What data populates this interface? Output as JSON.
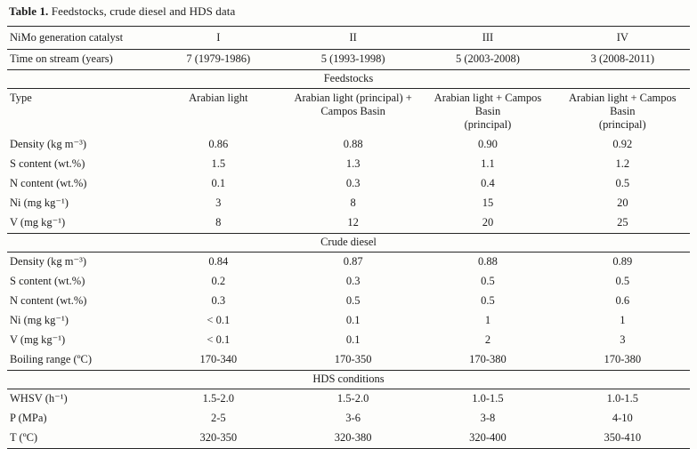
{
  "title": {
    "label": "Table 1.",
    "caption": " Feedstocks, crude diesel and HDS data"
  },
  "table": {
    "corner_label": "NiMo generation catalyst",
    "columns": [
      "I",
      "II",
      "III",
      "IV"
    ],
    "pre_rows": [
      {
        "label": "Time on stream (years)",
        "values": [
          "7 (1979-1986)",
          "5 (1993-1998)",
          "5 (2003-2008)",
          "3 (2008-2011)"
        ]
      }
    ],
    "sections": [
      {
        "name": "Feedstocks",
        "rows": [
          {
            "label": "Type",
            "values": [
              "Arabian light",
              "Arabian light (principal) +\nCampos Basin",
              "Arabian light + Campos Basin\n(principal)",
              "Arabian light + Campos Basin\n(principal)"
            ]
          },
          {
            "label": "Density (kg m⁻³)",
            "values": [
              "0.86",
              "0.88",
              "0.90",
              "0.92"
            ]
          },
          {
            "label": "S content (wt.%)",
            "values": [
              "1.5",
              "1.3",
              "1.1",
              "1.2"
            ]
          },
          {
            "label": "N content (wt.%)",
            "values": [
              "0.1",
              "0.3",
              "0.4",
              "0.5"
            ]
          },
          {
            "label": "Ni (mg kg⁻¹)",
            "values": [
              "3",
              "8",
              "15",
              "20"
            ]
          },
          {
            "label": "V (mg kg⁻¹)",
            "values": [
              "8",
              "12",
              "20",
              "25"
            ]
          }
        ]
      },
      {
        "name": "Crude diesel",
        "rows": [
          {
            "label": "Density (kg m⁻³)",
            "values": [
              "0.84",
              "0.87",
              "0.88",
              "0.89"
            ]
          },
          {
            "label": "S content (wt.%)",
            "values": [
              "0.2",
              "0.3",
              "0.5",
              "0.5"
            ]
          },
          {
            "label": "N content (wt.%)",
            "values": [
              "0.3",
              "0.5",
              "0.5",
              "0.6"
            ]
          },
          {
            "label": "Ni (mg kg⁻¹)",
            "values": [
              "< 0.1",
              "0.1",
              "1",
              "1"
            ]
          },
          {
            "label": "V (mg kg⁻¹)",
            "values": [
              "< 0.1",
              "0.1",
              "2",
              "3"
            ]
          },
          {
            "label": "Boiling range (ºC)",
            "values": [
              "170-340",
              "170-350",
              "170-380",
              "170-380"
            ]
          }
        ]
      },
      {
        "name": "HDS conditions",
        "rows": [
          {
            "label": "WHSV (h⁻¹)",
            "values": [
              "1.5-2.0",
              "1.5-2.0",
              "1.0-1.5",
              "1.0-1.5"
            ]
          },
          {
            "label": "P (MPa)",
            "values": [
              "2-5",
              "3-6",
              "3-8",
              "4-10"
            ]
          },
          {
            "label": "T (ºC)",
            "values": [
              "320-350",
              "320-380",
              "320-400",
              "350-410"
            ]
          }
        ]
      }
    ]
  }
}
